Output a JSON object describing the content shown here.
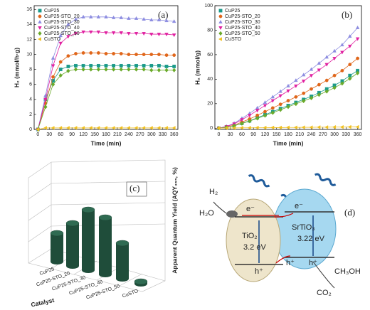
{
  "chart_data": [
    {
      "type": "line",
      "annotation": "(a)",
      "xlabel": "Time (min)",
      "ylabel": "H₂ (mmol/h·g)",
      "x": [
        0,
        20,
        40,
        60,
        80,
        100,
        120,
        140,
        160,
        180,
        200,
        220,
        240,
        260,
        280,
        300,
        320,
        340,
        360
      ],
      "xlim": [
        -10,
        370
      ],
      "xticks": [
        0,
        30,
        60,
        90,
        120,
        150,
        180,
        210,
        240,
        270,
        300,
        330,
        360
      ],
      "ylim": [
        0,
        16.5
      ],
      "yticks": [
        0,
        2,
        4,
        6,
        8,
        10,
        12,
        14,
        16
      ],
      "series": [
        {
          "name": "CuP25",
          "color": "#1a9a8a",
          "marker": "square",
          "values": [
            0,
            4,
            6.5,
            8,
            8.4,
            8.5,
            8.5,
            8.5,
            8.5,
            8.5,
            8.5,
            8.5,
            8.5,
            8.5,
            8.5,
            8.5,
            8.5,
            8.4,
            8.4
          ]
        },
        {
          "name": "CuP25-STO_20",
          "color": "#e0661a",
          "marker": "circle",
          "values": [
            0,
            3.5,
            7,
            9,
            9.8,
            10.1,
            10.2,
            10.2,
            10.2,
            10.1,
            10.1,
            10.1,
            10,
            10,
            10,
            10,
            10,
            9.9,
            9.9
          ]
        },
        {
          "name": "CuP25-STO_30",
          "color": "#8c8ce0",
          "marker": "triangle-up",
          "values": [
            0,
            4.5,
            9.5,
            12.5,
            14,
            14.7,
            15,
            15,
            15,
            15,
            14.9,
            14.9,
            14.8,
            14.8,
            14.7,
            14.6,
            14.6,
            14.5,
            14.4
          ]
        },
        {
          "name": "CuP25-STO_40",
          "color": "#e020a0",
          "marker": "triangle-down",
          "values": [
            0,
            4,
            8.5,
            11.5,
            12.4,
            12.8,
            13,
            13,
            13,
            12.9,
            12.9,
            12.9,
            12.8,
            12.8,
            12.8,
            12.7,
            12.7,
            12.7,
            12.6
          ]
        },
        {
          "name": "CuP25-STO_50",
          "color": "#6aaa2a",
          "marker": "diamond",
          "values": [
            0,
            3,
            6,
            7.2,
            7.8,
            8,
            8,
            8,
            8,
            8,
            8,
            8,
            8,
            8,
            8,
            7.9,
            7.9,
            7.9,
            7.9
          ]
        },
        {
          "name": "CuSTO",
          "color": "#f0c020",
          "marker": "triangle-left",
          "values": [
            0,
            0.2,
            0.2,
            0.2,
            0.2,
            0.2,
            0.2,
            0.2,
            0.2,
            0.2,
            0.2,
            0.2,
            0.2,
            0.2,
            0.2,
            0.2,
            0.2,
            0.2,
            0.2
          ]
        }
      ]
    },
    {
      "type": "line",
      "annotation": "(b)",
      "xlabel": "Time (min)",
      "ylabel": "H₂ (mmol/g)",
      "x": [
        0,
        20,
        40,
        60,
        80,
        100,
        120,
        140,
        160,
        180,
        200,
        220,
        240,
        260,
        280,
        300,
        320,
        340,
        360
      ],
      "xlim": [
        -10,
        370
      ],
      "xticks": [
        0,
        30,
        60,
        90,
        120,
        150,
        180,
        210,
        240,
        270,
        300,
        330,
        360
      ],
      "ylim": [
        -1,
        100
      ],
      "yticks": [
        0,
        20,
        40,
        60,
        80,
        100
      ],
      "series": [
        {
          "name": "CuP25",
          "color": "#1a9a8a",
          "marker": "square",
          "values": [
            0,
            0.8,
            2,
            4,
            6,
            8.5,
            11,
            13.5,
            16,
            18.5,
            21,
            23.5,
            26,
            29,
            32,
            35,
            38.5,
            43,
            47
          ]
        },
        {
          "name": "CuP25-STO_20",
          "color": "#e0661a",
          "marker": "circle",
          "values": [
            0,
            1,
            2.5,
            5,
            7.5,
            10.5,
            13.5,
            16.5,
            19.5,
            22.5,
            25.5,
            28.5,
            32,
            35.5,
            39,
            43,
            47,
            52,
            57
          ]
        },
        {
          "name": "CuP25-STO_30",
          "color": "#8c8ce0",
          "marker": "triangle-up",
          "values": [
            0,
            1.5,
            4,
            8,
            12,
            16.5,
            21,
            25.5,
            30,
            34.5,
            39,
            43.5,
            48,
            53,
            58,
            63,
            68,
            75,
            82
          ]
        },
        {
          "name": "CuP25-STO_40",
          "color": "#e020a0",
          "marker": "triangle-down",
          "values": [
            0,
            1.3,
            3.5,
            7,
            10.5,
            14.5,
            18.5,
            22.5,
            26.5,
            30.5,
            34.5,
            38.5,
            43,
            47.5,
            52,
            57,
            62,
            67,
            73
          ]
        },
        {
          "name": "CuP25-STO_50",
          "color": "#6aaa2a",
          "marker": "diamond",
          "values": [
            0,
            0.8,
            2,
            3.8,
            5.8,
            8,
            10.3,
            12.6,
            15,
            17.4,
            19.8,
            22.2,
            24.6,
            27.3,
            30,
            33,
            36.5,
            40.5,
            45
          ]
        },
        {
          "name": "CuSTO",
          "color": "#f0c020",
          "marker": "triangle-left",
          "values": [
            0,
            0.1,
            0.2,
            0.3,
            0.3,
            0.4,
            0.4,
            0.5,
            0.5,
            0.6,
            0.6,
            0.7,
            0.7,
            0.8,
            0.8,
            0.9,
            0.9,
            1,
            1
          ]
        }
      ]
    },
    {
      "type": "bar3d",
      "annotation": "(c)",
      "xlabel": "Catalyst",
      "ylabel": "Apparent Quantum Yield (AQY₃₆₅, %)",
      "categories": [
        "CuP25",
        "CuP25-STO_20",
        "CuP25-STO_30",
        "CuP25-STO_40",
        "CuP25-STO_50",
        "CuSTO"
      ],
      "values": [
        0.4,
        0.6,
        0.85,
        0.8,
        0.5,
        0.03
      ],
      "ylim": [
        0,
        1.2
      ],
      "color": "#1f4d3a"
    }
  ],
  "diagram": {
    "label": "(d)",
    "h2": "H₂",
    "h2o": "H₂O",
    "electrons": [
      "e⁻",
      "e⁻"
    ],
    "holes": [
      "h⁺",
      "h⁺",
      "h⁺"
    ],
    "tio2": "TiO₂",
    "tio2_gap": "3.2 eV",
    "srtio3": "SrTiO₃",
    "srtio3_gap": "3.22 eV",
    "ch3oh": "CH₃OH",
    "co2": "CO₂"
  }
}
